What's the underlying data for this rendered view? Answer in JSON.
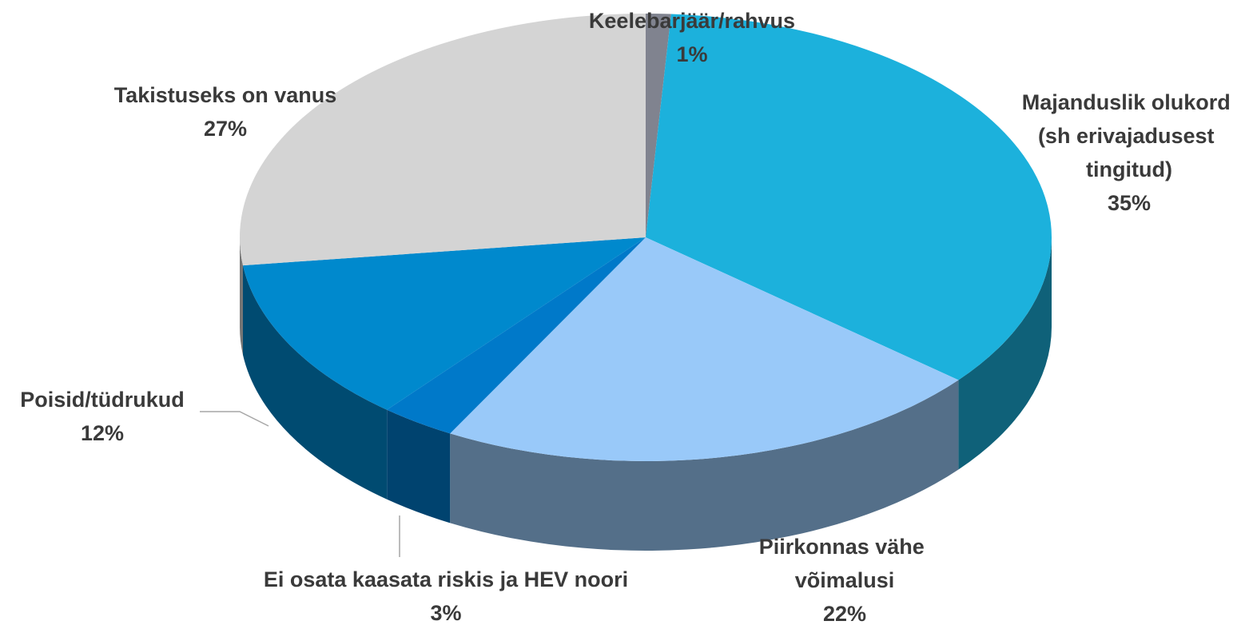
{
  "chart_data": {
    "type": "pie3d",
    "categories": [
      "Keelebarjäär/rahvus",
      "Majanduslik olukord (sh erivajadusest tingitud)",
      "Piirkonnas vähe võimalusi",
      "Ei osata kaasata riskis ja HEV noori",
      "Poisid/tüdrukud",
      "Takistuseks on vanus"
    ],
    "values": [
      1,
      35,
      22,
      3,
      12,
      27
    ],
    "value_labels": [
      "1%",
      "35%",
      "22%",
      "3%",
      "12%",
      "27%"
    ],
    "colors": [
      "#80838f",
      "#1cb1dc",
      "#99c9f9",
      "#0079c9",
      "#0089cd",
      "#d4d4d4"
    ]
  }
}
